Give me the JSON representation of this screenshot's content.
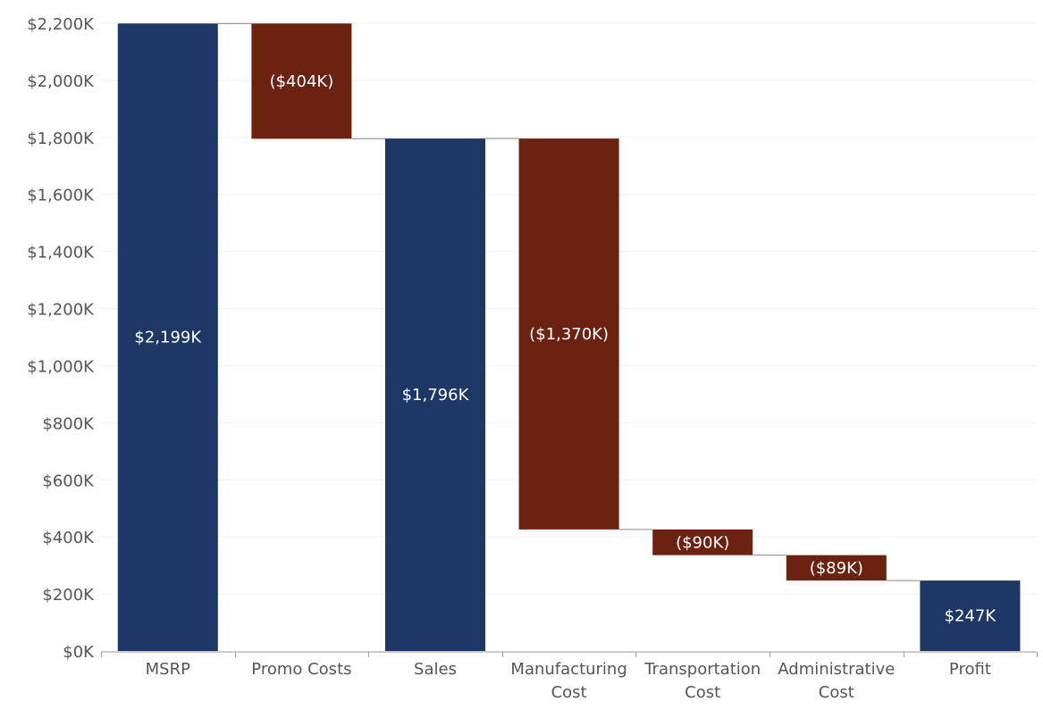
{
  "chart_data": {
    "type": "waterfall",
    "categories": [
      "MSRP",
      "Promo Costs",
      "Sales",
      "Manufacturing Cost",
      "Transportation Cost",
      "Administrative Cost",
      "Profit"
    ],
    "category_label_lines": [
      [
        "MSRP"
      ],
      [
        "Promo Costs"
      ],
      [
        "Sales"
      ],
      [
        "Manufacturing",
        "Cost"
      ],
      [
        "Transportation",
        "Cost"
      ],
      [
        "Administrative",
        "Cost"
      ],
      [
        "Profit"
      ]
    ],
    "values": [
      2199,
      -404,
      1796,
      -1370,
      -90,
      -89,
      247
    ],
    "kinds": [
      "total",
      "delta",
      "total",
      "delta",
      "delta",
      "delta",
      "total"
    ],
    "data_labels": [
      "$2,199K",
      "($404K)",
      "$1,796K",
      "($1,370K)",
      "($90K)",
      "($89K)",
      "$247K"
    ],
    "unit": "$K",
    "ylim": [
      0,
      2200
    ],
    "y_ticks": [
      0,
      200,
      400,
      600,
      800,
      1000,
      1200,
      1400,
      1600,
      1800,
      2000,
      2200
    ],
    "y_tick_labels": [
      "$0K",
      "$200K",
      "$400K",
      "$600K",
      "$800K",
      "$1,000K",
      "$1,200K",
      "$1,400K",
      "$1,600K",
      "$1,800K",
      "$2,000K",
      "$2,200K"
    ],
    "grid": true,
    "colors": {
      "total": "#1d3864",
      "decrease": "#6b2211",
      "gridline": "#efefef",
      "connector": "#8a8a8a",
      "axis": "#9a9a9a"
    }
  }
}
